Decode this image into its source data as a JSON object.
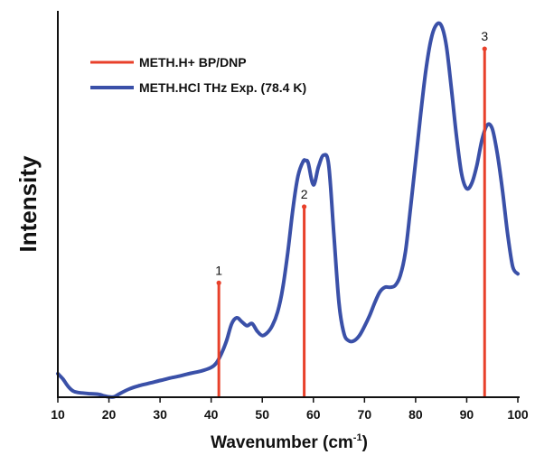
{
  "chart_data": {
    "type": "line",
    "xlabel": "Wavenumber (cm",
    "xlabel_sup": "-1",
    "xlabel_close": ")",
    "ylabel": "Intensity",
    "xlim": [
      10,
      100
    ],
    "ylim": [
      0,
      100
    ],
    "x_ticks": [
      10,
      20,
      30,
      40,
      50,
      60,
      70,
      80,
      90,
      100
    ],
    "legend": {
      "position": "top-left",
      "entries": [
        {
          "name": "METH.H+ BP/DNP",
          "type": "stick",
          "color": "#e8402a"
        },
        {
          "name": "METH.HCl THz Exp. (78.4 K)",
          "type": "line",
          "color": "#3a50a8"
        }
      ]
    },
    "series": [
      {
        "name": "METH.HCl THz Exp. (78.4 K)",
        "type": "line",
        "color": "#3a50a8",
        "x": [
          10,
          11,
          12,
          13,
          14,
          16,
          18,
          19,
          20,
          21,
          22,
          24,
          26,
          28,
          30,
          32,
          34,
          36,
          38,
          40,
          41,
          42,
          43,
          44,
          45,
          46,
          47,
          48,
          49,
          50,
          51,
          52,
          53,
          54,
          55,
          56,
          57,
          58,
          58.5,
          59,
          60,
          61,
          62,
          63,
          64,
          65,
          66,
          67,
          68,
          69,
          70,
          71,
          72,
          73,
          74,
          75,
          76,
          77,
          78,
          79,
          80,
          81,
          82,
          83,
          84,
          85,
          86,
          87,
          88,
          89,
          90,
          91,
          92,
          93,
          94,
          95,
          96,
          97,
          98,
          99,
          100
        ],
        "y": [
          6.5,
          5.0,
          3.0,
          1.7,
          1.3,
          1.0,
          0.8,
          0.4,
          0.1,
          0.1,
          0.9,
          2.3,
          3.2,
          3.9,
          4.6,
          5.3,
          5.9,
          6.6,
          7.2,
          8.2,
          9.4,
          12.0,
          15.5,
          20.2,
          21.9,
          20.8,
          19.7,
          20.3,
          18.2,
          17.0,
          17.8,
          19.8,
          23.5,
          30.0,
          40.0,
          52.0,
          61.0,
          65.0,
          65.2,
          64.5,
          58.5,
          63.5,
          66.7,
          64.0,
          45.0,
          26.0,
          17.5,
          15.5,
          15.6,
          17.0,
          19.5,
          22.5,
          26.0,
          29.0,
          30.3,
          30.3,
          30.8,
          33.5,
          40.0,
          52.0,
          65.0,
          78.0,
          90.0,
          98.5,
          102.5,
          102.5,
          97.0,
          85.0,
          72.0,
          61.5,
          57.5,
          59.0,
          64.0,
          71.0,
          75.0,
          74.0,
          67.0,
          57.0,
          45.0,
          36.0,
          34.0
        ]
      },
      {
        "name": "METH.H+ BP/DNP",
        "type": "stick",
        "color": "#e8402a",
        "x": [
          41.5,
          58.2,
          93.5
        ],
        "y": [
          31.5,
          52.5,
          96.0
        ],
        "labels": [
          "1",
          "2",
          "3"
        ]
      }
    ]
  }
}
